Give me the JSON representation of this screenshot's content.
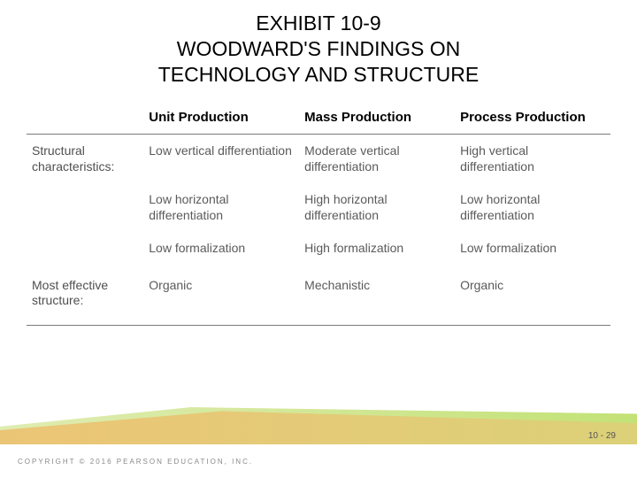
{
  "title": {
    "line1": "EXHIBIT 10-9",
    "line2": "WOODWARD'S FINDINGS ON",
    "line3": "TECHNOLOGY AND STRUCTURE"
  },
  "table": {
    "columns": [
      "Unit Production",
      "Mass Production",
      "Process Production"
    ],
    "rows": [
      {
        "label": "Structural characteristics:",
        "cells": [
          [
            "Low vertical differentiation",
            "Moderate vertical differentiation",
            "High vertical differentiation"
          ],
          [
            "Low horizontal differentiation",
            "High horizontal differentiation",
            "Low horizontal differentiation"
          ],
          [
            "Low formalization",
            "High formalization",
            "Low formalization"
          ]
        ]
      },
      {
        "label": "Most effective structure:",
        "cells": [
          [
            "Organic",
            "Mechanistic",
            "Organic"
          ]
        ]
      }
    ]
  },
  "footer": {
    "copyright": "COPYRIGHT © 2016 PEARSON EDUCATION, INC.",
    "page": "10 - 29"
  },
  "colors": {
    "text_dark": "#000000",
    "text_gray": "#5a5a5a",
    "rule": "#7a7a7a",
    "deco_green_start": "#d9e9a3",
    "deco_green_end": "#b8dd5e",
    "deco_orange_start": "#f5a545",
    "deco_orange_end": "#f0c27a",
    "background": "#ffffff"
  }
}
